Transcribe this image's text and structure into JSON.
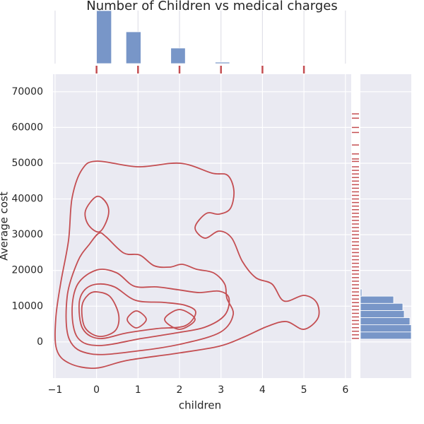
{
  "chart_data": {
    "type": "joint",
    "title": "Number of Children vs medical charges",
    "xlabel": "children",
    "ylabel": "Average cost",
    "xlim": [
      -1.05,
      6.14
    ],
    "ylim": [
      -10100,
      74900
    ],
    "xticks": [
      {
        "value": -1,
        "label": "−1"
      },
      0,
      1,
      2,
      3,
      4,
      5,
      6
    ],
    "yticks": [
      0,
      10000,
      20000,
      30000,
      40000,
      50000,
      60000,
      70000
    ],
    "grid": true,
    "contour_color": "#c44e52",
    "x_hist": {
      "bins": [
        0,
        0.36,
        0.71,
        1.07,
        1.43,
        1.79,
        2.14,
        2.5,
        2.86,
        3.21,
        3.57,
        3.93,
        4.29,
        4.64,
        5
      ],
      "counts": [
        75,
        0,
        45,
        0,
        0,
        22,
        0,
        0,
        2,
        0,
        0,
        0,
        0,
        0
      ],
      "ylim": [
        0,
        75
      ],
      "color": "#7896c8"
    },
    "x_rug": {
      "values": [
        0,
        1,
        2,
        3,
        4,
        5
      ],
      "color": "#c44e52"
    },
    "y_hist": {
      "bins": [
        800,
        2800,
        4800,
        6800,
        8800,
        10800,
        12800,
        14800
      ],
      "counts": [
        72,
        72,
        70,
        62,
        60,
        47,
        2
      ],
      "xlim": [
        0,
        72
      ],
      "color": "#7896c8"
    },
    "y_rug": {
      "values": [
        1000,
        2000,
        3000,
        4000,
        5000,
        6000,
        7000,
        8000,
        9000,
        10000,
        11000,
        12000,
        13000,
        14000,
        15000,
        16000,
        17000,
        18000,
        19000,
        20000,
        21000,
        22000,
        23000,
        24000,
        25000,
        26000,
        27000,
        28000,
        29000,
        30000,
        31000,
        32000,
        33000,
        34000,
        35000,
        36000,
        37000,
        38000,
        39000,
        40000,
        41000,
        42000,
        43000,
        44000,
        45000,
        46000,
        47000,
        48000,
        49000,
        50500,
        51200,
        52600,
        55100,
        58600,
        60000,
        62600,
        63800
      ],
      "color": "#c44e52"
    }
  }
}
